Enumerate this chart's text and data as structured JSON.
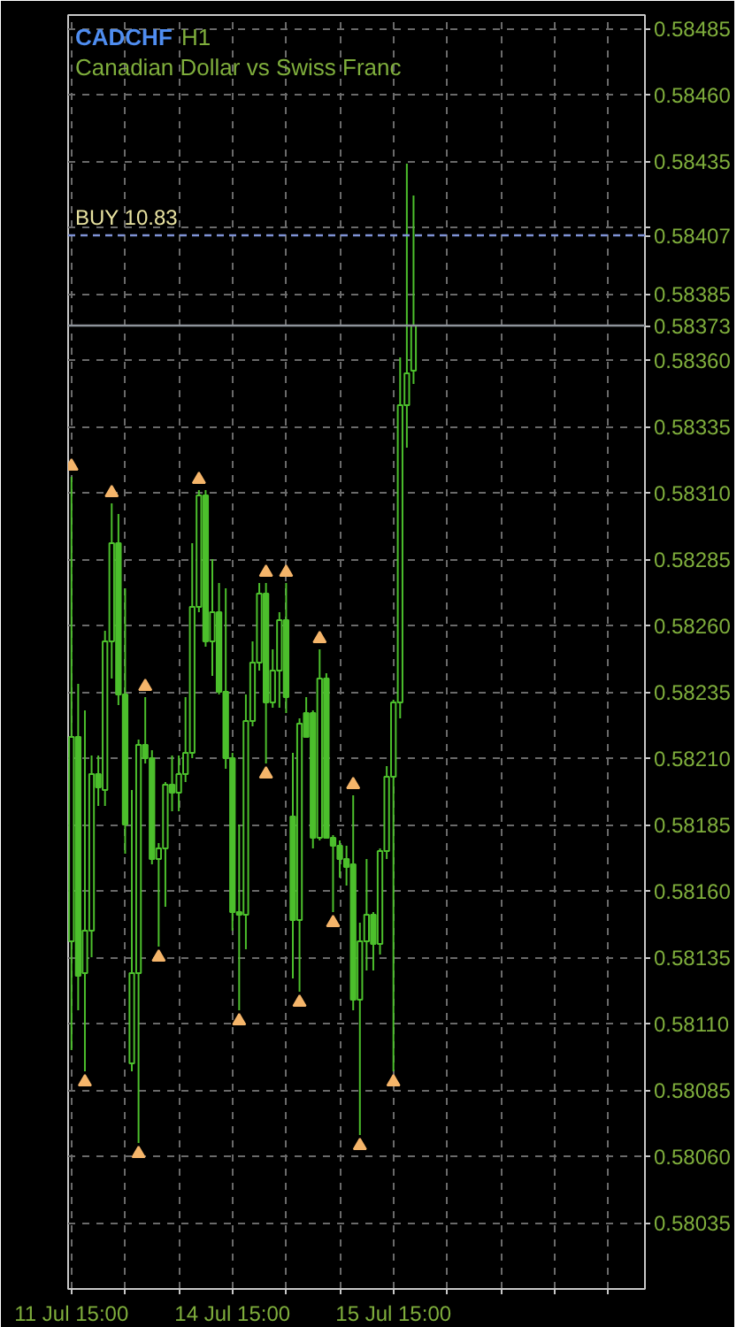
{
  "chart_data": {
    "type": "candlestick",
    "title": "CADCHF",
    "subtitle": "H1",
    "annotations": [
      "Canadian Dollar vs Swiss Franc"
    ],
    "color": "#4cbf2c",
    "categories": [
      "11 Jul 15:00",
      null,
      null,
      null,
      null,
      null,
      null,
      null,
      null,
      null,
      null,
      null,
      null,
      null,
      null,
      null,
      null,
      null,
      null,
      null,
      null,
      null,
      null,
      null,
      "14 Jul 15:00",
      null,
      null,
      null,
      null,
      null,
      null,
      null,
      null,
      null,
      null,
      null,
      null,
      null,
      null,
      null,
      null,
      null,
      null,
      null,
      null,
      null,
      null,
      null,
      "15 Jul 15:00",
      null,
      null,
      null,
      null,
      null,
      null,
      null,
      null,
      null,
      null,
      null,
      null,
      null,
      null,
      null,
      null,
      null,
      null,
      null,
      null,
      null,
      null,
      null,
      null,
      null,
      null,
      null,
      null,
      null,
      null,
      null,
      null,
      null,
      null,
      null,
      null,
      null
    ],
    "ohlc": [
      [
        0.58141,
        0.58316,
        0.581,
        0.58218
      ],
      [
        0.58218,
        0.58238,
        0.58115,
        0.58128
      ],
      [
        0.58129,
        0.58228,
        0.58092,
        0.58145
      ],
      [
        0.58145,
        0.58211,
        0.58135,
        0.58204
      ],
      [
        0.58204,
        0.58211,
        0.58192,
        0.58199
      ],
      [
        0.58198,
        0.58258,
        0.58192,
        0.58254
      ],
      [
        0.58254,
        0.58306,
        0.5824,
        0.58291
      ],
      [
        0.58291,
        0.58302,
        0.5823,
        0.58234
      ],
      [
        0.58234,
        0.58274,
        0.58174,
        0.58185
      ],
      [
        0.58095,
        0.58198,
        0.58092,
        0.58129
      ],
      [
        0.58129,
        0.58217,
        0.58065,
        0.58215
      ],
      [
        0.58215,
        0.58233,
        0.58208,
        0.5821
      ],
      [
        0.5821,
        0.58213,
        0.5817,
        0.58172
      ],
      [
        0.58172,
        0.58178,
        0.58139,
        0.58176
      ],
      [
        0.58176,
        0.58201,
        0.58154,
        0.582
      ],
      [
        0.582,
        0.58211,
        0.5819,
        0.58197
      ],
      [
        0.58197,
        0.58211,
        0.5819,
        0.58204
      ],
      [
        0.58204,
        0.58233,
        0.58201,
        0.58212
      ],
      [
        0.58212,
        0.58291,
        0.5821,
        0.58267
      ],
      [
        0.58267,
        0.58311,
        0.58265,
        0.58309
      ],
      [
        0.58309,
        0.58311,
        0.58252,
        0.58254
      ],
      [
        0.58254,
        0.58285,
        0.58241,
        0.58265
      ],
      [
        0.58265,
        0.58276,
        0.58234,
        0.58235
      ],
      [
        0.58235,
        0.58274,
        0.58206,
        0.5821
      ],
      [
        0.5821,
        0.58212,
        0.58145,
        0.58152
      ],
      [
        0.58152,
        0.58185,
        0.58115,
        0.58151
      ],
      [
        0.58151,
        0.58234,
        0.58138,
        0.58224
      ],
      [
        0.58224,
        0.58254,
        0.58222,
        0.58246
      ],
      [
        0.58246,
        0.58276,
        0.58243,
        0.58272
      ],
      [
        0.58272,
        0.58276,
        0.58208,
        0.58231
      ],
      [
        0.58231,
        0.58251,
        0.58229,
        0.58243
      ],
      [
        0.58243,
        0.58265,
        0.58229,
        0.58262
      ],
      [
        0.58262,
        0.58276,
        0.58227,
        0.58233
      ],
      [
        0.58188,
        0.58212,
        0.58127,
        0.58149
      ],
      [
        0.58149,
        0.58225,
        0.58122,
        0.58223
      ],
      [
        0.58227,
        0.58233,
        0.58218,
        0.58218
      ],
      [
        0.58227,
        0.58228,
        0.58176,
        0.5818
      ],
      [
        0.5818,
        0.58251,
        0.58179,
        0.5824
      ],
      [
        0.5824,
        0.58242,
        0.5818,
        0.5818
      ],
      [
        0.5818,
        0.58181,
        0.58152,
        0.58177
      ],
      [
        0.58177,
        0.58179,
        0.58165,
        0.58172
      ],
      [
        0.58172,
        0.58177,
        0.58162,
        0.58169
      ],
      [
        0.5817,
        0.58196,
        0.58115,
        0.58119
      ],
      [
        0.58119,
        0.58148,
        0.58068,
        0.58141
      ],
      [
        0.58141,
        0.58172,
        0.5813,
        0.58151
      ],
      [
        0.58151,
        0.58152,
        0.5813,
        0.5814
      ],
      [
        0.5814,
        0.58176,
        0.58136,
        0.58175
      ],
      [
        0.58175,
        0.58207,
        0.58172,
        0.58203
      ],
      [
        0.58203,
        0.58232,
        0.58092,
        0.58231
      ],
      [
        0.58231,
        0.58361,
        0.58225,
        0.58343
      ],
      [
        0.58343,
        0.58434,
        0.58327,
        0.58355
      ],
      [
        0.58356,
        0.58422,
        0.58351,
        0.58373
      ],
      null,
      null,
      null,
      null,
      null,
      null,
      null,
      null,
      null,
      null,
      null,
      null,
      null,
      null,
      null,
      null,
      null,
      null,
      null,
      null,
      null,
      null,
      null,
      null,
      null,
      null,
      null,
      null,
      null,
      null,
      null,
      null,
      null,
      null
    ],
    "series": [
      {
        "type": "scatter",
        "color": "#f5b56a",
        "marker": "triangle",
        "values": [
          0.5832,
          null,
          null,
          null,
          null,
          null,
          0.5831,
          null,
          null,
          null,
          null,
          0.58237,
          null,
          null,
          null,
          null,
          null,
          null,
          null,
          0.58315,
          null,
          null,
          null,
          null,
          null,
          null,
          null,
          null,
          null,
          0.5828,
          null,
          null,
          0.5828,
          null,
          null,
          null,
          null,
          0.58255,
          null,
          null,
          null,
          null,
          0.582,
          null,
          null,
          null,
          null,
          null,
          null,
          null,
          null,
          null,
          null,
          null,
          null,
          null,
          null,
          null,
          null,
          null,
          null,
          null,
          null,
          null,
          null,
          null,
          null,
          null,
          null,
          null,
          null,
          null,
          null,
          null,
          null,
          null,
          null,
          null,
          null,
          null,
          null,
          null,
          null,
          null,
          null,
          null
        ]
      },
      {
        "type": "scatter",
        "color": "#f5b56a",
        "marker": "triangle",
        "values": [
          null,
          null,
          0.58088,
          null,
          null,
          null,
          null,
          null,
          null,
          null,
          0.58061,
          null,
          null,
          0.58135,
          null,
          null,
          null,
          null,
          null,
          null,
          null,
          null,
          null,
          null,
          null,
          0.58111,
          null,
          null,
          null,
          0.58204,
          null,
          null,
          null,
          null,
          0.58118,
          null,
          null,
          null,
          null,
          0.58148,
          null,
          null,
          null,
          0.58064,
          null,
          null,
          null,
          null,
          0.58088,
          null,
          null,
          null,
          null,
          null,
          null,
          null,
          null,
          null,
          null,
          null,
          null,
          null,
          null,
          null,
          null,
          null,
          null,
          null,
          null,
          null,
          null,
          null,
          null,
          null,
          null,
          null,
          null,
          null,
          null,
          null,
          null,
          null,
          null,
          null,
          null,
          null
        ]
      }
    ],
    "ylim": [
      0.5801,
      0.5849
    ],
    "yticks": [
      {
        "value": 0.58035,
        "label": "0.58035"
      },
      {
        "value": 0.5806,
        "label": "0.58060"
      },
      {
        "value": 0.58085,
        "label": "0.58085"
      },
      {
        "value": 0.5811,
        "label": "0.58110"
      },
      {
        "value": 0.58135,
        "label": "0.58135"
      },
      {
        "value": 0.5816,
        "label": "0.58160"
      },
      {
        "value": 0.58185,
        "label": "0.58185"
      },
      {
        "value": 0.5821,
        "label": "0.58210"
      },
      {
        "value": 0.58235,
        "label": "0.58235"
      },
      {
        "value": 0.5826,
        "label": "0.58260"
      },
      {
        "value": 0.58285,
        "label": "0.58285"
      },
      {
        "value": 0.5831,
        "label": "0.58310"
      },
      {
        "value": 0.58335,
        "label": "0.58335"
      },
      {
        "value": 0.5836,
        "label": "0.58360"
      },
      {
        "value": 0.58373,
        "label": "0.58373"
      },
      {
        "value": 0.58385,
        "label": "0.58385"
      },
      {
        "value": 0.58407,
        "label": "0.58407"
      },
      {
        "value": 0.5841,
        "label": null
      },
      {
        "value": 0.58435,
        "label": "0.58435"
      },
      {
        "value": 0.5846,
        "label": "0.58460"
      },
      {
        "value": 0.58485,
        "label": "0.58485"
      }
    ],
    "grid": true,
    "ref_lines": [
      {
        "axis": "y",
        "value": 0.58407,
        "label": "BUY 10.83",
        "color": "#7f93d6",
        "line_style": "dashed"
      },
      {
        "axis": "y",
        "value": 0.58373,
        "label": null,
        "color": "#8e949b",
        "line_style": "solid"
      }
    ]
  }
}
